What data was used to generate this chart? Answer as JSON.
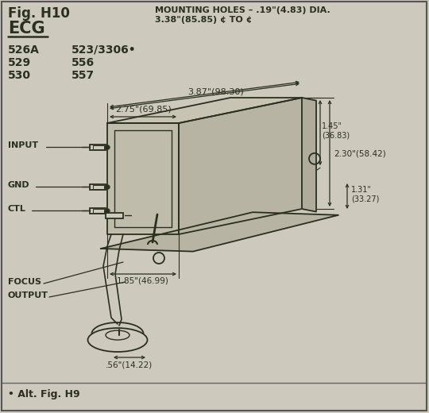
{
  "bg_color": "#cdc9bc",
  "line_color": "#2a3020",
  "title": "Fig. H10",
  "subtitle": "ECG",
  "models_left": [
    "526A",
    "529",
    "530"
  ],
  "models_right": [
    "523/3306•",
    "556",
    "557"
  ],
  "mounting_line1": "MOUNTING HOLES – .19\"(4.83) DIA.",
  "mounting_line2": "3.38\"(85.85) ¢ TO ¢",
  "dim_top_outer": "3.87\"(98.30)",
  "dim_top_inner": "2.75\"(69.85)",
  "dim_right_full": "2.30\"(58.42)",
  "dim_right_mid": "1.45\"\n(36.83)",
  "dim_right_bot": "1.31\"\n(33.27)",
  "dim_bot_right": "1.85\"(46.99)",
  "dim_bot_left": ".56\"(14.22)",
  "alt_text": "• Alt. Fig. H9"
}
